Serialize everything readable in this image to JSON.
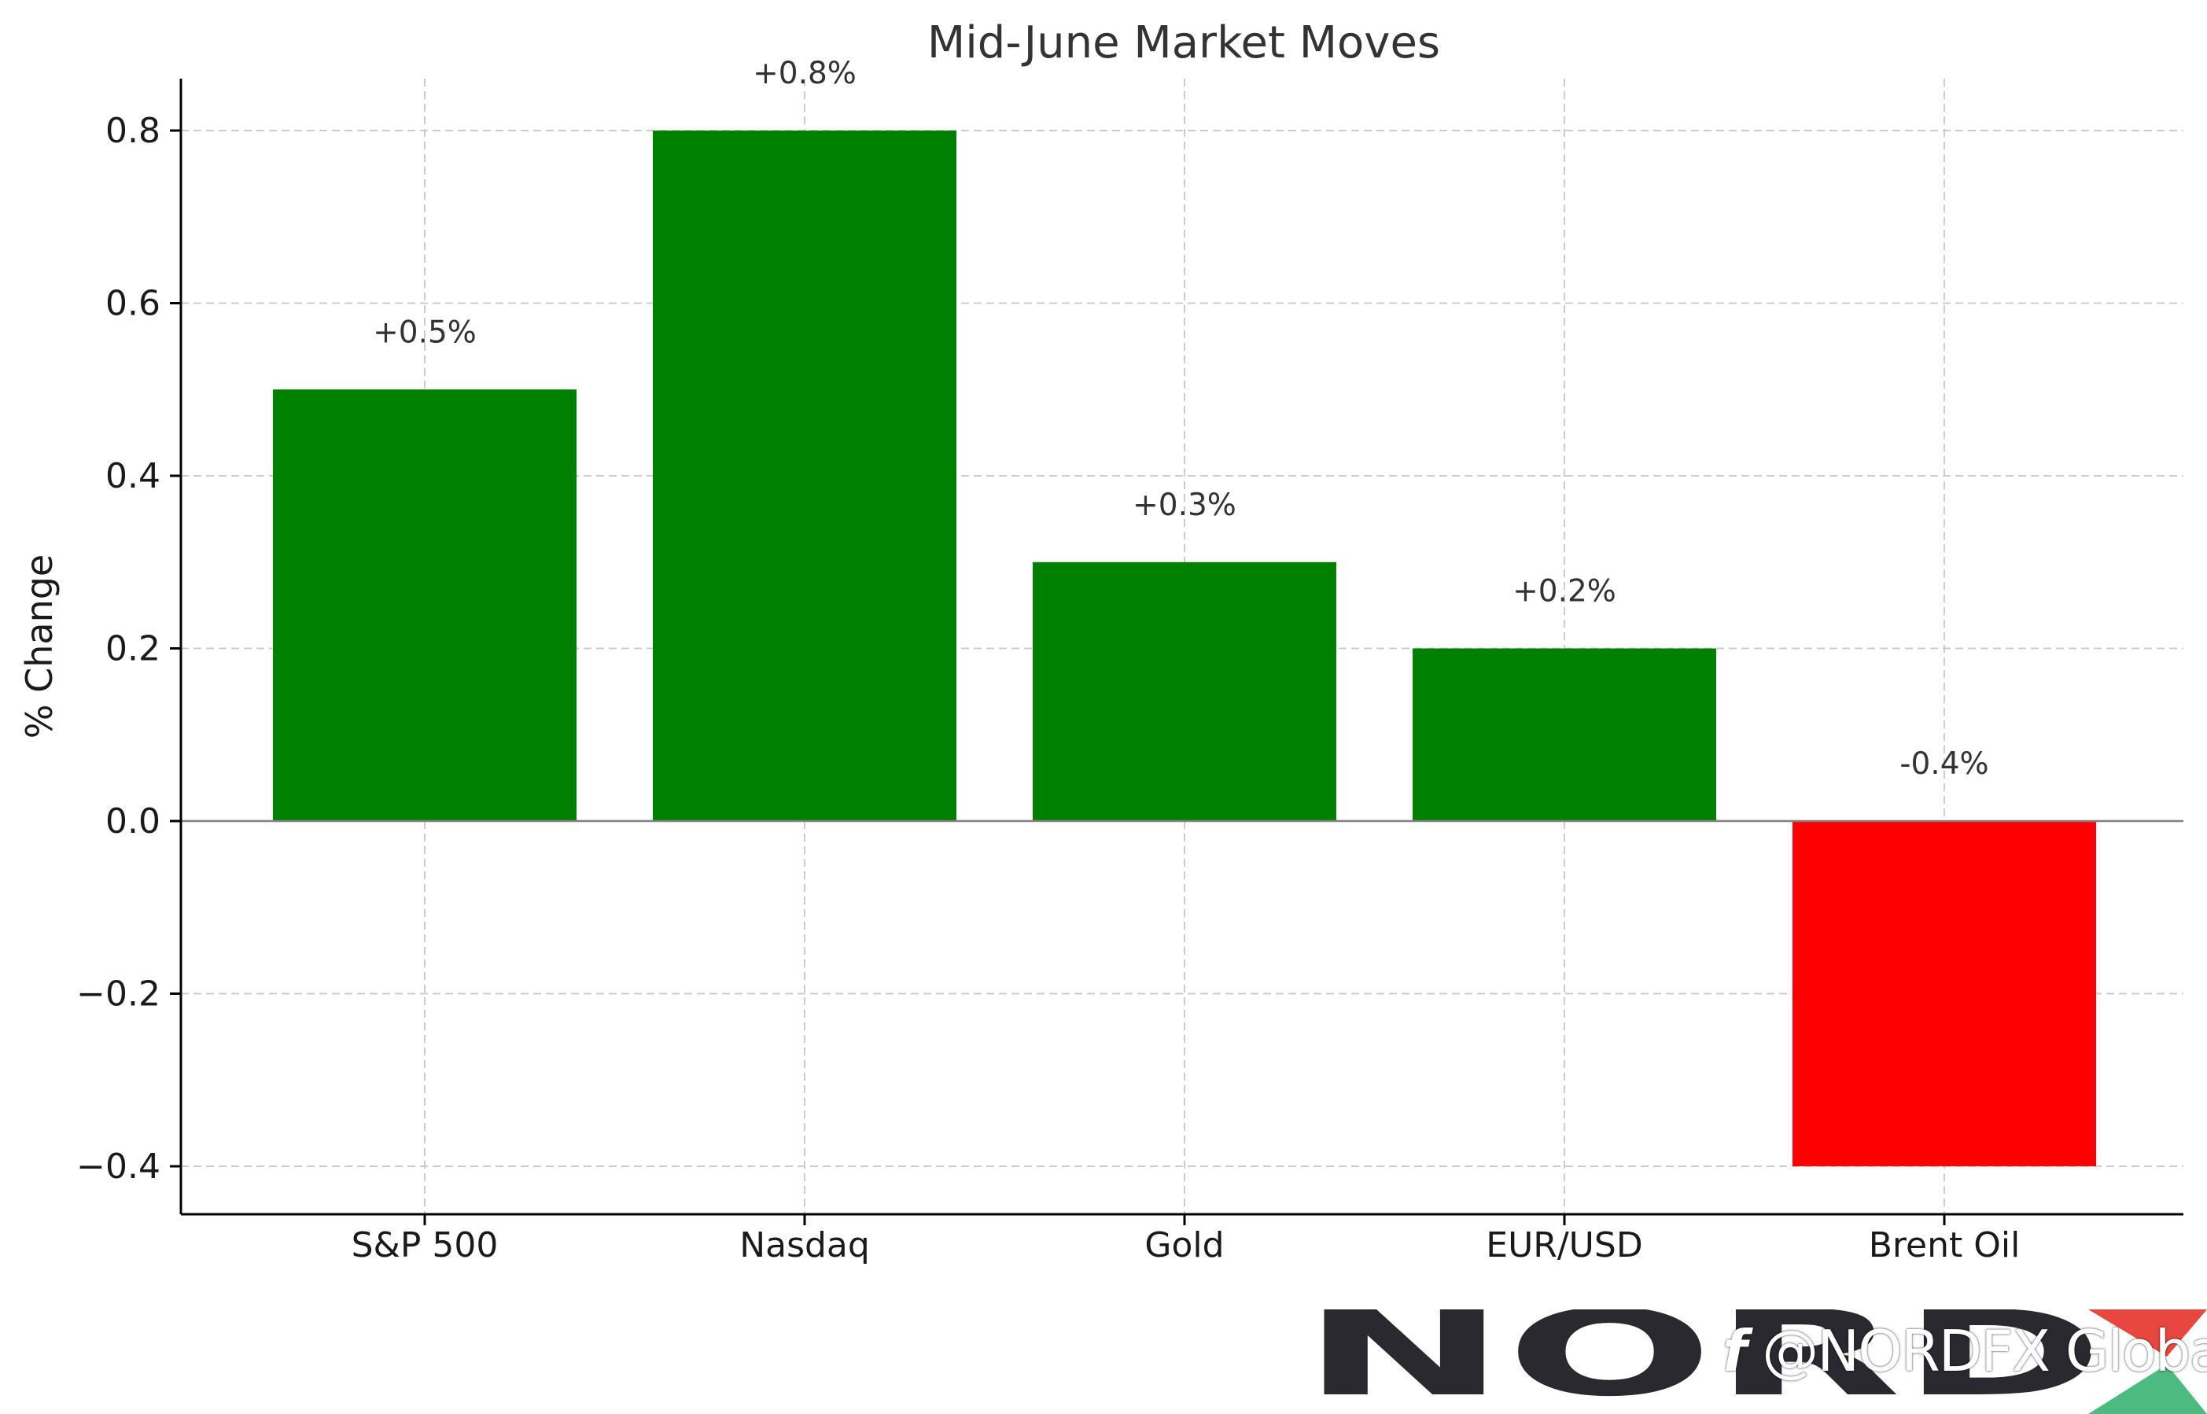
{
  "chart_data": {
    "type": "bar",
    "title": "Mid-June Market Moves",
    "xlabel": "",
    "ylabel": "% Change",
    "categories": [
      "S&P 500",
      "Nasdaq",
      "Gold",
      "EUR/USD",
      "Brent Oil"
    ],
    "values": [
      0.5,
      0.8,
      0.3,
      0.2,
      -0.4
    ],
    "data_labels": [
      "+0.5%",
      "+0.8%",
      "+0.3%",
      "+0.2%",
      "-0.4%"
    ],
    "bar_colors": [
      "#008000",
      "#008000",
      "#008000",
      "#008000",
      "#ff0000"
    ],
    "ylim": [
      -0.46,
      0.86
    ],
    "yticks": [
      -0.4,
      -0.2,
      0.0,
      0.2,
      0.4,
      0.6,
      0.8
    ],
    "ytick_labels": [
      "−0.4",
      "−0.2",
      "0.0",
      "0.2",
      "0.4",
      "0.6",
      "0.8"
    ],
    "grid": true,
    "zero_line": true
  },
  "watermark": {
    "logo_text": "NORDFX",
    "handle": "@NORDFX Global",
    "logo_color": "#2b2930",
    "accent_red": "#e8473f",
    "accent_green": "#4dbb7f"
  }
}
